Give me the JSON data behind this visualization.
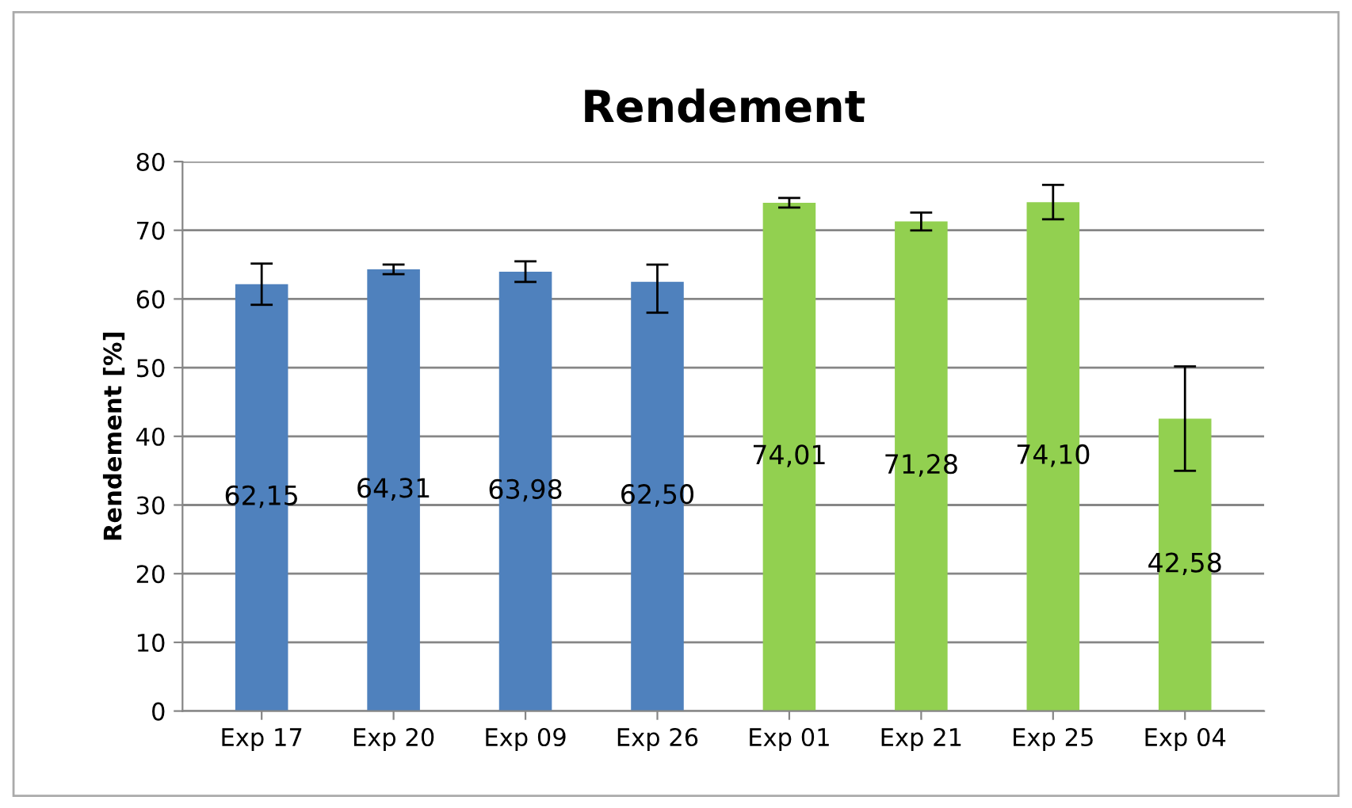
{
  "chart_data": {
    "type": "bar",
    "title": "Rendement",
    "ylabel": "Rendement [%]",
    "categories": [
      "Exp 17",
      "Exp 20",
      "Exp 09",
      "Exp 26",
      "Exp 01",
      "Exp 21",
      "Exp 25",
      "Exp 04"
    ],
    "values": [
      62.15,
      64.31,
      63.98,
      62.5,
      74.01,
      71.28,
      74.1,
      42.58
    ],
    "value_labels": [
      "62,15",
      "64,31",
      "63,98",
      "62,50",
      "74,01",
      "71,28",
      "74,10",
      "42,58"
    ],
    "errors": [
      3,
      0.7,
      1.5,
      [
        58,
        65
      ],
      0.7,
      1.3,
      2.5,
      7.6
    ],
    "colors": [
      "#4f81bd",
      "#4f81bd",
      "#4f81bd",
      "#4f81bd",
      "#92d050",
      "#92d050",
      "#92d050",
      "#92d050"
    ],
    "ylim": [
      0,
      80
    ],
    "yticks": [
      0,
      10,
      20,
      30,
      40,
      50,
      60,
      70,
      80
    ],
    "grid": "y"
  }
}
